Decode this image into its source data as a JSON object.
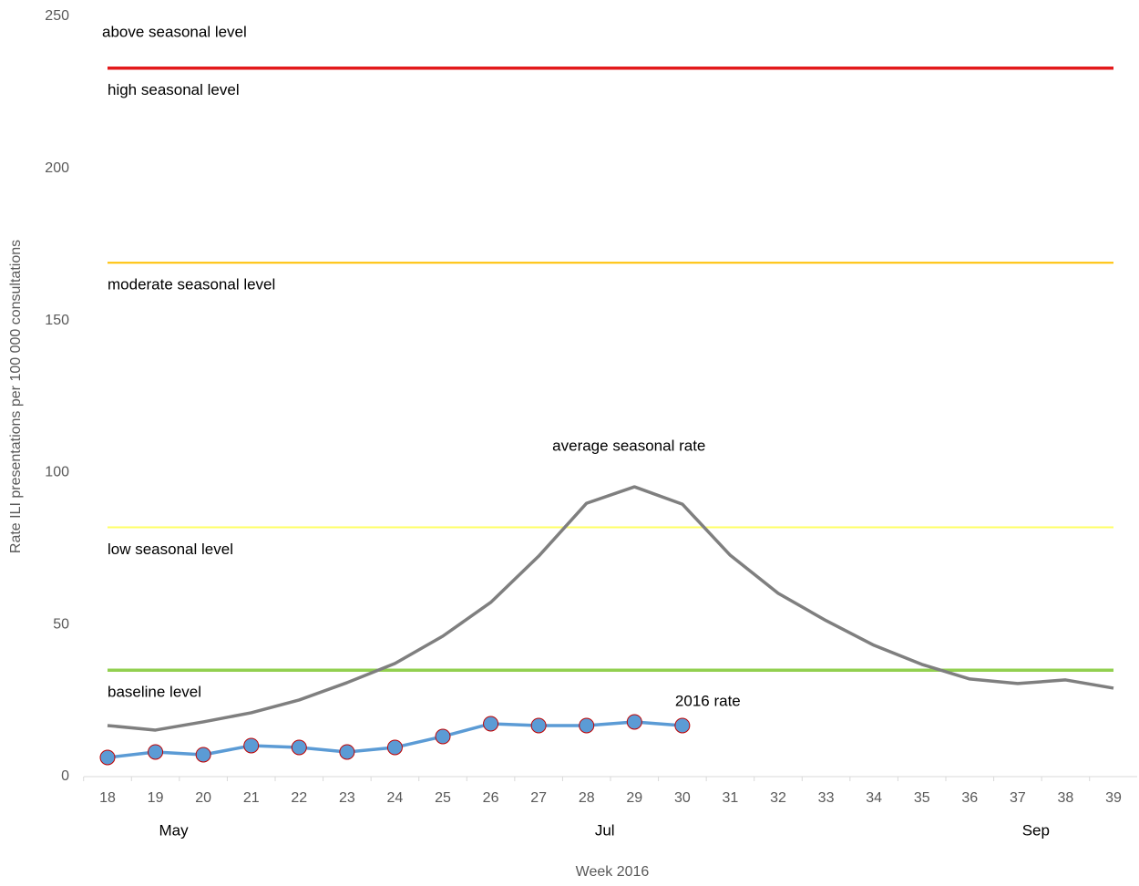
{
  "chart_data": {
    "type": "line",
    "x_label": "Week 2016",
    "y_label": "Rate ILI presentations per 100 000 consultations",
    "categories": [
      "18",
      "19",
      "20",
      "21",
      "22",
      "23",
      "24",
      "25",
      "26",
      "27",
      "28",
      "29",
      "30",
      "31",
      "32",
      "33",
      "34",
      "35",
      "36",
      "37",
      "38",
      "39"
    ],
    "month_labels": [
      null,
      "May",
      null,
      null,
      null,
      null,
      null,
      null,
      null,
      null,
      "Jul",
      null,
      null,
      null,
      null,
      null,
      null,
      null,
      null,
      "Sep",
      null,
      null
    ],
    "ylim": [
      0,
      250
    ],
    "yticks": [
      0,
      50,
      100,
      150,
      200,
      250
    ],
    "series": [
      {
        "name": "average seasonal rate",
        "color": "#7f7f7f",
        "markers": false,
        "values": [
          16.8,
          15.3,
          18,
          21,
          25.2,
          30.9,
          37.2,
          46.2,
          57.3,
          72.5,
          89.9,
          95.3,
          89.6,
          72.8,
          60.3,
          51.3,
          43.2,
          36.9,
          32.1,
          30.6,
          31.8,
          29.1
        ]
      },
      {
        "name": "2016 rate",
        "color": "#5b9bd5",
        "markers": true,
        "marker_edge": "#c00000",
        "values": [
          6.3,
          8.1,
          7.2,
          10.2,
          9.6,
          8.1,
          9.6,
          13.2,
          17.4,
          16.8,
          16.8,
          18,
          16.8,
          null,
          null,
          null,
          null,
          null,
          null,
          null,
          null,
          null
        ]
      }
    ],
    "thresholds": [
      {
        "value": 35,
        "color": "#92d050",
        "label": "baseline level"
      },
      {
        "value": 82,
        "color": "#ffff66",
        "label": "low seasonal level"
      },
      {
        "value": 169,
        "color": "#ffc000",
        "label": "moderate seasonal level"
      },
      {
        "value": 233,
        "color": "#e31a1c",
        "label": "high seasonal level"
      }
    ],
    "top_label": "above seasonal level"
  }
}
